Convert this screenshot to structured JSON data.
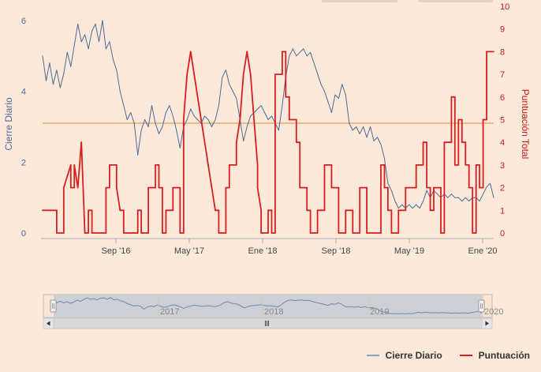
{
  "chart_data": {
    "type": "line",
    "y_left": {
      "title": "Cierre Diario",
      "ticks": [
        "0",
        "2",
        "4",
        "6"
      ],
      "range": [
        0,
        6.4
      ]
    },
    "y_right": {
      "title": "Puntuación Total",
      "ticks": [
        "0",
        "1",
        "2",
        "3",
        "4",
        "5",
        "6",
        "7",
        "8",
        "9",
        "10"
      ],
      "range": [
        0,
        10
      ]
    },
    "x_ticks": [
      "Sep '16",
      "May '17",
      "Ene '18",
      "Sep '18",
      "May '19",
      "Ene '20"
    ],
    "plot_line_value": 3.1,
    "navigator_years": [
      "2017",
      "2018",
      "2019",
      "2020"
    ],
    "series": [
      {
        "name": "Cierre Diario",
        "color": "#4a6a94",
        "axis": "left",
        "values": [
          [
            0,
            5.0
          ],
          [
            1,
            4.3
          ],
          [
            2,
            4.8
          ],
          [
            3,
            4.2
          ],
          [
            4,
            4.6
          ],
          [
            5,
            4.1
          ],
          [
            6,
            4.5
          ],
          [
            7,
            5.1
          ],
          [
            8,
            4.7
          ],
          [
            10,
            5.9
          ],
          [
            11,
            5.4
          ],
          [
            12,
            5.6
          ],
          [
            13,
            5.2
          ],
          [
            14,
            5.7
          ],
          [
            15,
            5.9
          ],
          [
            16,
            5.4
          ],
          [
            17,
            6.0
          ],
          [
            18,
            5.2
          ],
          [
            19,
            5.4
          ],
          [
            20,
            4.9
          ],
          [
            21,
            4.6
          ],
          [
            22,
            4.0
          ],
          [
            23,
            3.6
          ],
          [
            24,
            3.2
          ],
          [
            25,
            3.4
          ],
          [
            26,
            3.1
          ],
          [
            27,
            2.2
          ],
          [
            28,
            2.9
          ],
          [
            29,
            3.2
          ],
          [
            30,
            3.0
          ],
          [
            31,
            3.6
          ],
          [
            32,
            3.1
          ],
          [
            33,
            2.8
          ],
          [
            34,
            3.0
          ],
          [
            35,
            3.4
          ],
          [
            36,
            3.6
          ],
          [
            37,
            3.3
          ],
          [
            38,
            2.9
          ],
          [
            39,
            2.4
          ],
          [
            40,
            3.0
          ],
          [
            41,
            3.2
          ],
          [
            42,
            3.5
          ],
          [
            43,
            3.3
          ],
          [
            44,
            3.2
          ],
          [
            45,
            3.1
          ],
          [
            46,
            3.3
          ],
          [
            47,
            3.2
          ],
          [
            48,
            3.0
          ],
          [
            49,
            3.2
          ],
          [
            50,
            3.6
          ],
          [
            51,
            4.4
          ],
          [
            52,
            4.6
          ],
          [
            53,
            4.2
          ],
          [
            54,
            4.0
          ],
          [
            55,
            3.8
          ],
          [
            56,
            3.2
          ],
          [
            57,
            2.6
          ],
          [
            58,
            3.0
          ],
          [
            59,
            3.3
          ],
          [
            60,
            3.4
          ],
          [
            61,
            3.5
          ],
          [
            62,
            3.6
          ],
          [
            63,
            3.4
          ],
          [
            64,
            3.2
          ],
          [
            65,
            3.3
          ],
          [
            66,
            3.1
          ],
          [
            67,
            2.9
          ],
          [
            68,
            3.6
          ],
          [
            69,
            4.4
          ],
          [
            70,
            5.0
          ],
          [
            71,
            5.2
          ],
          [
            72,
            5.0
          ],
          [
            73,
            5.1
          ],
          [
            74,
            5.2
          ],
          [
            75,
            5.0
          ],
          [
            76,
            5.1
          ],
          [
            77,
            4.8
          ],
          [
            78,
            4.5
          ],
          [
            79,
            4.2
          ],
          [
            80,
            4.0
          ],
          [
            81,
            3.7
          ],
          [
            82,
            3.4
          ],
          [
            83,
            3.9
          ],
          [
            84,
            3.8
          ],
          [
            85,
            4.2
          ],
          [
            86,
            3.9
          ],
          [
            87,
            3.1
          ],
          [
            88,
            2.9
          ],
          [
            89,
            3.0
          ],
          [
            90,
            2.8
          ],
          [
            91,
            3.0
          ],
          [
            92,
            2.7
          ],
          [
            93,
            3.0
          ],
          [
            94,
            2.6
          ],
          [
            95,
            2.7
          ],
          [
            96,
            2.5
          ],
          [
            97,
            2.1
          ],
          [
            98,
            1.4
          ],
          [
            99,
            1.2
          ],
          [
            100,
            0.9
          ],
          [
            101,
            0.7
          ],
          [
            102,
            0.8
          ],
          [
            103,
            0.7
          ],
          [
            104,
            0.8
          ],
          [
            105,
            0.7
          ],
          [
            106,
            0.8
          ],
          [
            107,
            0.7
          ],
          [
            108,
            0.9
          ],
          [
            109,
            1.2
          ],
          [
            110,
            1.0
          ],
          [
            111,
            1.2
          ],
          [
            112,
            1.1
          ],
          [
            113,
            1.0
          ],
          [
            114,
            1.1
          ],
          [
            115,
            1.0
          ],
          [
            116,
            1.1
          ],
          [
            117,
            1.0
          ],
          [
            118,
            1.0
          ],
          [
            119,
            0.9
          ],
          [
            120,
            1.0
          ],
          [
            121,
            0.9
          ],
          [
            122,
            1.0
          ],
          [
            123,
            1.0
          ],
          [
            124,
            0.9
          ],
          [
            125,
            1.1
          ],
          [
            126,
            1.3
          ],
          [
            127,
            1.4
          ],
          [
            128,
            1.0
          ]
        ]
      },
      {
        "name": "Puntuación",
        "color": "#d81e1e",
        "axis": "right",
        "values": [
          [
            0,
            1
          ],
          [
            4,
            1
          ],
          [
            4,
            0
          ],
          [
            6,
            0
          ],
          [
            6,
            2
          ],
          [
            8,
            3
          ],
          [
            8,
            2
          ],
          [
            9,
            2
          ],
          [
            9,
            3
          ],
          [
            10,
            2
          ],
          [
            11,
            4
          ],
          [
            12,
            0
          ],
          [
            13,
            0
          ],
          [
            13,
            1
          ],
          [
            14,
            1
          ],
          [
            14,
            0
          ],
          [
            16,
            0
          ],
          [
            18,
            0
          ],
          [
            18,
            2
          ],
          [
            19,
            2
          ],
          [
            19,
            3
          ],
          [
            21,
            3
          ],
          [
            21,
            2
          ],
          [
            22,
            1
          ],
          [
            23,
            1
          ],
          [
            23,
            0
          ],
          [
            26,
            0
          ],
          [
            27,
            0
          ],
          [
            27,
            1
          ],
          [
            28,
            1
          ],
          [
            28,
            0
          ],
          [
            30,
            0
          ],
          [
            30,
            2
          ],
          [
            32,
            2
          ],
          [
            32,
            3
          ],
          [
            33,
            3
          ],
          [
            33,
            2
          ],
          [
            34,
            2
          ],
          [
            34,
            0
          ],
          [
            35,
            0
          ],
          [
            35,
            1
          ],
          [
            37,
            1
          ],
          [
            37,
            2
          ],
          [
            39,
            2
          ],
          [
            39,
            0
          ],
          [
            40,
            0
          ],
          [
            40,
            5
          ],
          [
            41,
            7
          ],
          [
            42,
            8
          ],
          [
            43,
            7
          ],
          [
            44,
            6
          ],
          [
            45,
            5
          ],
          [
            46,
            4
          ],
          [
            47,
            3
          ],
          [
            48,
            2
          ],
          [
            49,
            1
          ],
          [
            50,
            1
          ],
          [
            50,
            0
          ],
          [
            52,
            0
          ],
          [
            52,
            2
          ],
          [
            53,
            2
          ],
          [
            53,
            3
          ],
          [
            55,
            3
          ],
          [
            55,
            4
          ],
          [
            56,
            5
          ],
          [
            57,
            7
          ],
          [
            58,
            8
          ],
          [
            59,
            7
          ],
          [
            60,
            5
          ],
          [
            61,
            3
          ],
          [
            61,
            2
          ],
          [
            62,
            1
          ],
          [
            62,
            0
          ],
          [
            64,
            0
          ],
          [
            64,
            1
          ],
          [
            65,
            1
          ],
          [
            65,
            0
          ],
          [
            66,
            0
          ],
          [
            66,
            7
          ],
          [
            68,
            7
          ],
          [
            68,
            8
          ],
          [
            69,
            8
          ],
          [
            69,
            6
          ],
          [
            70,
            6
          ],
          [
            70,
            5
          ],
          [
            72,
            5
          ],
          [
            72,
            4
          ],
          [
            73,
            4
          ],
          [
            73,
            2
          ],
          [
            75,
            2
          ],
          [
            75,
            1
          ],
          [
            76,
            1
          ],
          [
            76,
            0
          ],
          [
            78,
            0
          ],
          [
            78,
            1
          ],
          [
            80,
            1
          ],
          [
            80,
            3
          ],
          [
            82,
            3
          ],
          [
            82,
            2
          ],
          [
            84,
            2
          ],
          [
            84,
            0
          ],
          [
            86,
            0
          ],
          [
            86,
            1
          ],
          [
            88,
            1
          ],
          [
            88,
            0
          ],
          [
            90,
            0
          ],
          [
            90,
            2
          ],
          [
            92,
            2
          ],
          [
            92,
            0
          ],
          [
            95,
            0
          ],
          [
            96,
            0
          ],
          [
            96,
            3
          ],
          [
            97,
            3
          ],
          [
            97,
            2
          ],
          [
            98,
            2
          ],
          [
            98,
            1
          ],
          [
            99,
            1
          ],
          [
            99,
            0
          ],
          [
            101,
            0
          ],
          [
            101,
            1
          ],
          [
            103,
            1
          ],
          [
            103,
            2
          ],
          [
            106,
            2
          ],
          [
            106,
            3
          ],
          [
            108,
            3
          ],
          [
            108,
            4
          ],
          [
            109,
            4
          ],
          [
            109,
            2
          ],
          [
            110,
            2
          ],
          [
            110,
            1
          ],
          [
            111,
            1
          ],
          [
            111,
            2
          ],
          [
            113,
            2
          ],
          [
            113,
            0
          ],
          [
            114,
            0
          ],
          [
            114,
            4
          ],
          [
            116,
            4
          ],
          [
            116,
            6
          ],
          [
            117,
            6
          ],
          [
            117,
            3
          ],
          [
            118,
            3
          ],
          [
            118,
            5
          ],
          [
            119,
            5
          ],
          [
            119,
            4
          ],
          [
            120,
            4
          ],
          [
            120,
            3
          ],
          [
            121,
            3
          ],
          [
            121,
            2
          ],
          [
            122,
            2
          ],
          [
            122,
            0
          ],
          [
            123,
            0
          ],
          [
            123,
            3
          ],
          [
            124,
            3
          ],
          [
            124,
            2
          ],
          [
            125,
            2
          ],
          [
            125,
            5
          ],
          [
            126,
            5
          ],
          [
            126,
            8
          ],
          [
            128,
            8
          ]
        ]
      }
    ],
    "grid": false,
    "legend": "bottom-right"
  }
}
